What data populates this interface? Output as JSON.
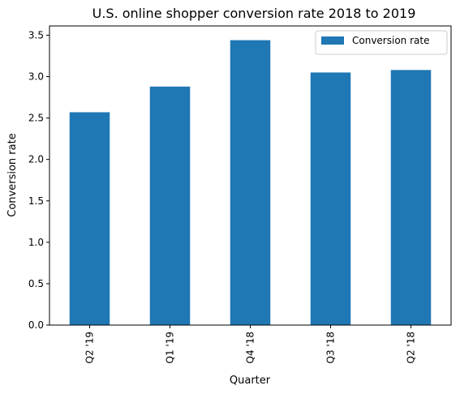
{
  "chart_data": {
    "type": "bar",
    "title": "U.S. online shopper conversion rate 2018 to 2019",
    "xlabel": "Quarter",
    "ylabel": "Conversion rate",
    "categories": [
      "Q2 '19",
      "Q1 '19",
      "Q4 '18",
      "Q3 '18",
      "Q2 '18"
    ],
    "series": [
      {
        "name": "Conversion rate",
        "values": [
          2.57,
          2.88,
          3.44,
          3.05,
          3.08
        ],
        "color": "#1f77b4"
      }
    ],
    "ylim": [
      0,
      3.612
    ],
    "yticks": [
      "0.0",
      "0.5",
      "1.0",
      "1.5",
      "2.0",
      "2.5",
      "3.0",
      "3.5"
    ],
    "grid": false,
    "legend_position": "top-right"
  }
}
